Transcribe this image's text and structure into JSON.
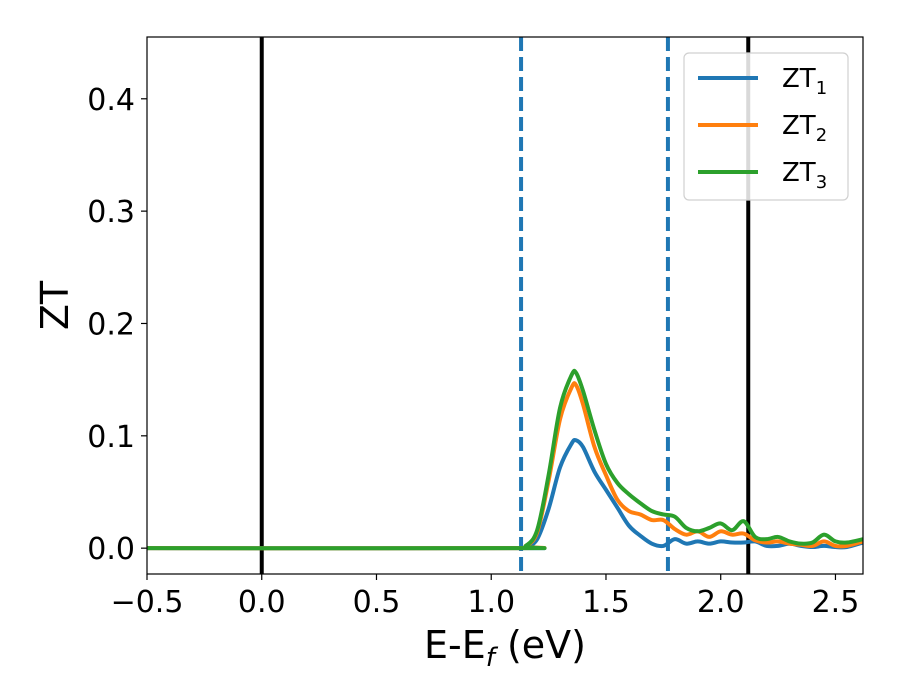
{
  "chart_data": {
    "type": "line",
    "xlabel": "E-E",
    "xlabel_sub": "f",
    "xlabel_unit": " (eV)",
    "ylabel": "ZT",
    "xlim": [
      -0.5,
      2.62
    ],
    "ylim": [
      -0.023,
      0.455
    ],
    "x_ticks": [
      -0.5,
      0.0,
      0.5,
      1.0,
      1.5,
      2.0,
      2.5
    ],
    "x_tick_labels": [
      "−0.5",
      "0.0",
      "0.5",
      "1.0",
      "1.5",
      "2.0",
      "2.5"
    ],
    "y_ticks": [
      0.0,
      0.1,
      0.2,
      0.3,
      0.4
    ],
    "y_tick_labels": [
      "0.0",
      "0.1",
      "0.2",
      "0.3",
      "0.4"
    ],
    "grid": false,
    "legend_position": "top-right",
    "vertical_lines": [
      {
        "x": 0.0,
        "style": "solid",
        "color": "#000000"
      },
      {
        "x": 2.12,
        "style": "solid",
        "color": "#000000"
      },
      {
        "x": 1.13,
        "style": "dashed",
        "color": "#1f77b4"
      },
      {
        "x": 1.77,
        "style": "dashed",
        "color": "#1f77b4"
      }
    ],
    "series": [
      {
        "name": "ZT",
        "name_sub": "1",
        "color": "#1f77b4",
        "points": [
          [
            -0.5,
            0
          ],
          [
            1.1,
            0
          ],
          [
            1.15,
            0.001
          ],
          [
            1.2,
            0.008
          ],
          [
            1.25,
            0.035
          ],
          [
            1.3,
            0.072
          ],
          [
            1.35,
            0.093
          ],
          [
            1.37,
            0.096
          ],
          [
            1.4,
            0.09
          ],
          [
            1.45,
            0.068
          ],
          [
            1.5,
            0.052
          ],
          [
            1.55,
            0.036
          ],
          [
            1.6,
            0.02
          ],
          [
            1.65,
            0.011
          ],
          [
            1.7,
            0.004
          ],
          [
            1.75,
            0.002
          ],
          [
            1.8,
            0.008
          ],
          [
            1.85,
            0.004
          ],
          [
            1.9,
            0.006
          ],
          [
            1.95,
            0.004
          ],
          [
            2.0,
            0.006
          ],
          [
            2.05,
            0.005
          ],
          [
            2.1,
            0.005
          ],
          [
            2.15,
            0.006
          ],
          [
            2.2,
            0.002
          ],
          [
            2.25,
            0.002
          ],
          [
            2.3,
            0.004
          ],
          [
            2.35,
            0.002
          ],
          [
            2.4,
            0.001
          ],
          [
            2.45,
            0.002
          ],
          [
            2.5,
            0.001
          ],
          [
            2.55,
            0.001
          ],
          [
            2.62,
            0.005
          ]
        ]
      },
      {
        "name": "ZT",
        "name_sub": "2",
        "color": "#ff7f0e",
        "points": [
          [
            -0.5,
            0
          ],
          [
            1.1,
            0
          ],
          [
            1.15,
            0.002
          ],
          [
            1.2,
            0.014
          ],
          [
            1.25,
            0.06
          ],
          [
            1.3,
            0.115
          ],
          [
            1.35,
            0.143
          ],
          [
            1.37,
            0.145
          ],
          [
            1.4,
            0.128
          ],
          [
            1.45,
            0.09
          ],
          [
            1.5,
            0.065
          ],
          [
            1.55,
            0.043
          ],
          [
            1.6,
            0.033
          ],
          [
            1.65,
            0.03
          ],
          [
            1.7,
            0.025
          ],
          [
            1.75,
            0.025
          ],
          [
            1.8,
            0.017
          ],
          [
            1.85,
            0.012
          ],
          [
            1.9,
            0.015
          ],
          [
            1.95,
            0.01
          ],
          [
            2.0,
            0.015
          ],
          [
            2.05,
            0.012
          ],
          [
            2.1,
            0.013
          ],
          [
            2.15,
            0.007
          ],
          [
            2.2,
            0.005
          ],
          [
            2.25,
            0.006
          ],
          [
            2.3,
            0.004
          ],
          [
            2.35,
            0.003
          ],
          [
            2.4,
            0.002
          ],
          [
            2.45,
            0.006
          ],
          [
            2.5,
            0.002
          ],
          [
            2.55,
            0.002
          ],
          [
            2.62,
            0.006
          ]
        ]
      },
      {
        "name": "ZT",
        "name_sub": "3",
        "color": "#2ca02c",
        "points": [
          [
            -0.5,
            0
          ],
          [
            1.1,
            0
          ],
          [
            1.15,
            0.002
          ],
          [
            1.2,
            0.016
          ],
          [
            1.25,
            0.065
          ],
          [
            1.3,
            0.125
          ],
          [
            1.35,
            0.154
          ],
          [
            1.37,
            0.156
          ],
          [
            1.4,
            0.14
          ],
          [
            1.45,
            0.105
          ],
          [
            1.5,
            0.075
          ],
          [
            1.55,
            0.058
          ],
          [
            1.6,
            0.048
          ],
          [
            1.65,
            0.04
          ],
          [
            1.7,
            0.033
          ],
          [
            1.75,
            0.03
          ],
          [
            1.8,
            0.028
          ],
          [
            1.85,
            0.018
          ],
          [
            1.9,
            0.015
          ],
          [
            1.95,
            0.018
          ],
          [
            2.0,
            0.022
          ],
          [
            2.05,
            0.016
          ],
          [
            2.1,
            0.024
          ],
          [
            2.15,
            0.01
          ],
          [
            2.2,
            0.008
          ],
          [
            2.25,
            0.01
          ],
          [
            2.3,
            0.006
          ],
          [
            2.35,
            0.004
          ],
          [
            2.4,
            0.005
          ],
          [
            2.45,
            0.012
          ],
          [
            2.5,
            0.006
          ],
          [
            2.55,
            0.005
          ],
          [
            2.62,
            0.008
          ]
        ]
      }
    ]
  }
}
